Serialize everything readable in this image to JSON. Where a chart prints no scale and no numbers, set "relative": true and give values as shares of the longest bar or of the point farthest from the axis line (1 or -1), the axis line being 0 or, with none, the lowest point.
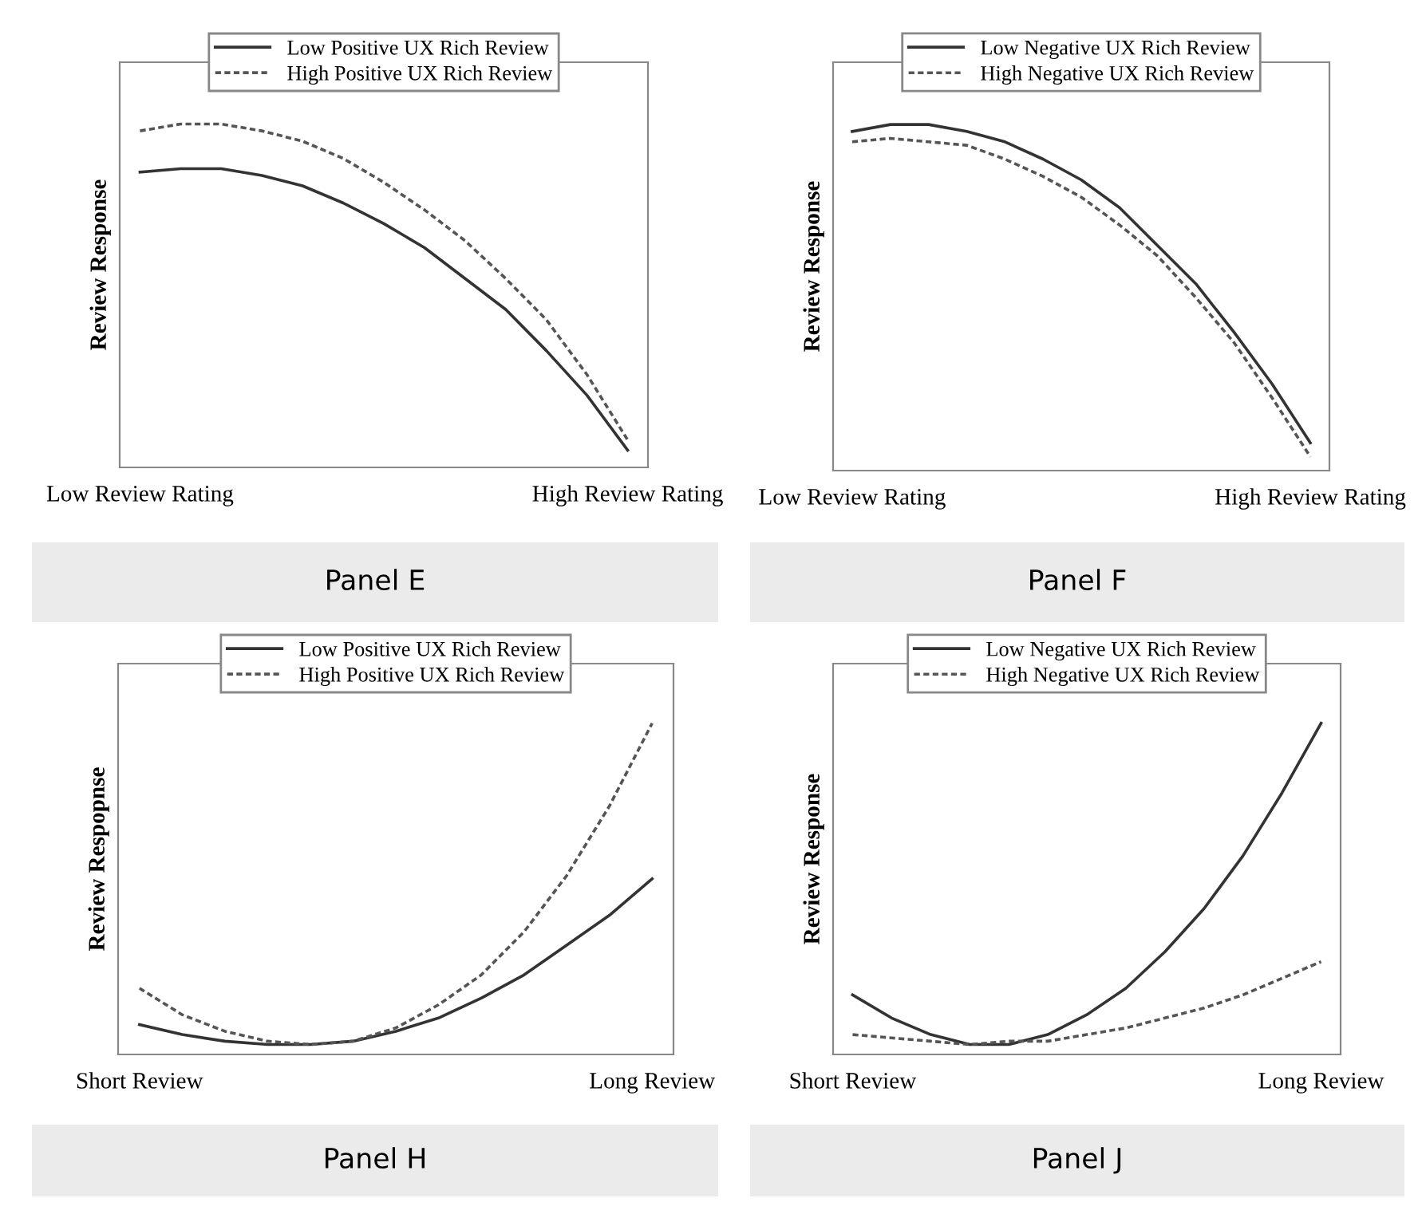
{
  "chart_data": [
    {
      "type": "line",
      "title": "Panel E",
      "ylabel": "Review Response",
      "relative": true,
      "legend": "top",
      "categories": [
        "Low Review Rating",
        null,
        null,
        null,
        null,
        null,
        null,
        null,
        null,
        null,
        null,
        null,
        "High Review Rating"
      ],
      "series": [
        {
          "name": "Low Positive UX Rich Review",
          "color": "#333333",
          "line_style": "solid",
          "values": [
            0.86,
            0.87,
            0.87,
            0.85,
            0.82,
            0.77,
            0.71,
            0.64,
            0.55,
            0.46,
            0.34,
            0.21,
            0.05
          ]
        },
        {
          "name": "High Positive UX Rich Review",
          "color": "#555555",
          "line_style": "dotted",
          "values": [
            0.98,
            1.0,
            1.0,
            0.98,
            0.95,
            0.9,
            0.83,
            0.75,
            0.66,
            0.55,
            0.43,
            0.27,
            0.08
          ]
        }
      ]
    },
    {
      "type": "line",
      "title": "Panel F",
      "ylabel": "Review Response",
      "relative": true,
      "legend": "top",
      "categories": [
        "Low Review Rating",
        null,
        null,
        null,
        null,
        null,
        null,
        null,
        null,
        null,
        null,
        null,
        "High Review Rating"
      ],
      "series": [
        {
          "name": "Low Negative UX Rich Review",
          "color": "#333333",
          "line_style": "solid",
          "values": [
            0.98,
            1.0,
            1.0,
            0.98,
            0.95,
            0.9,
            0.84,
            0.76,
            0.65,
            0.54,
            0.4,
            0.25,
            0.08
          ]
        },
        {
          "name": "High Negative UX Rich Review",
          "color": "#555555",
          "line_style": "dotted",
          "values": [
            0.95,
            0.96,
            0.95,
            0.94,
            0.9,
            0.85,
            0.79,
            0.71,
            0.62,
            0.5,
            0.37,
            0.21,
            0.04
          ]
        }
      ]
    },
    {
      "type": "line",
      "title": "Panel H",
      "ylabel": "Review Respopnse",
      "relative": true,
      "legend": "top",
      "categories": [
        "Short Review",
        null,
        null,
        null,
        null,
        null,
        null,
        null,
        null,
        null,
        null,
        null,
        "Long Review"
      ],
      "series": [
        {
          "name": "Low Positive UX Rich Review",
          "color": "#333333",
          "line_style": "solid",
          "values": [
            0.09,
            0.06,
            0.04,
            0.03,
            0.03,
            0.04,
            0.07,
            0.11,
            0.17,
            0.24,
            0.33,
            0.42,
            0.53
          ]
        },
        {
          "name": "High Positive UX Rich Review",
          "color": "#555555",
          "line_style": "dotted",
          "values": [
            0.2,
            0.12,
            0.07,
            0.04,
            0.03,
            0.04,
            0.08,
            0.15,
            0.24,
            0.37,
            0.54,
            0.75,
            1.0
          ]
        }
      ]
    },
    {
      "type": "line",
      "title": "Panel J",
      "ylabel": "Review Response",
      "relative": true,
      "legend": "top",
      "categories": [
        "Short Review",
        null,
        null,
        null,
        null,
        null,
        null,
        null,
        null,
        null,
        null,
        null,
        "Long Review"
      ],
      "series": [
        {
          "name": "Low Negative UX Rich Review",
          "color": "#333333",
          "line_style": "solid",
          "values": [
            0.18,
            0.11,
            0.06,
            0.03,
            0.03,
            0.06,
            0.12,
            0.2,
            0.31,
            0.44,
            0.6,
            0.79,
            1.0
          ]
        },
        {
          "name": "High Negative UX Rich Review",
          "color": "#555555",
          "line_style": "dotted",
          "values": [
            0.06,
            0.05,
            0.04,
            0.03,
            0.04,
            0.04,
            0.06,
            0.08,
            0.11,
            0.14,
            0.18,
            0.23,
            0.28
          ]
        }
      ]
    }
  ]
}
